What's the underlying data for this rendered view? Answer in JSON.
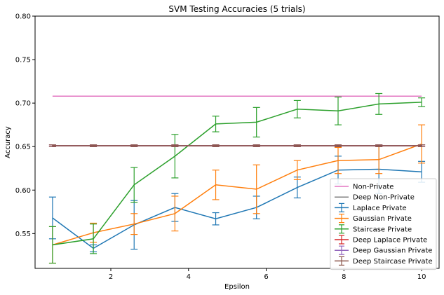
{
  "chart_data": {
    "type": "line",
    "title": "SVM Testing Accuracies (5 trials)",
    "xlabel": "Epsilon",
    "ylabel": "Accuracy",
    "xlim": [
      0.05,
      10.45
    ],
    "ylim": [
      0.51,
      0.8
    ],
    "xticks": [
      2,
      4,
      6,
      8,
      10
    ],
    "yticks": [
      0.55,
      0.6,
      0.65,
      0.7,
      0.75,
      0.8
    ],
    "ytick_labels": [
      "0.55",
      "0.60",
      "0.65",
      "0.70",
      "0.75",
      "0.80"
    ],
    "grid": false,
    "legend_position": "lower-right",
    "x": [
      0.5,
      1.55,
      2.6,
      3.65,
      4.7,
      5.75,
      6.8,
      7.85,
      8.9,
      10.0
    ],
    "series": [
      {
        "name": "Non-Private",
        "color": "#e377c2",
        "errorbars": false,
        "values": [
          0.708,
          0.708,
          0.708,
          0.708,
          0.708,
          0.708,
          0.708,
          0.708,
          0.708,
          0.708
        ]
      },
      {
        "name": "Deep Non-Private",
        "color": "#7f7f7f",
        "errorbars": false,
        "values": [
          0.651,
          0.651,
          0.651,
          0.651,
          0.651,
          0.651,
          0.651,
          0.651,
          0.651,
          0.651
        ]
      },
      {
        "name": "Laplace Private",
        "color": "#1f77b4",
        "errorbars": true,
        "values": [
          0.568,
          0.533,
          0.56,
          0.58,
          0.567,
          0.58,
          0.603,
          0.623,
          0.624,
          0.621
        ],
        "errors": [
          0.024,
          0.004,
          0.028,
          0.016,
          0.007,
          0.013,
          0.012,
          0.016,
          0.028,
          0.012
        ]
      },
      {
        "name": "Gaussian Private",
        "color": "#ff7f0e",
        "errorbars": true,
        "values": [
          0.537,
          0.551,
          0.561,
          0.573,
          0.606,
          0.601,
          0.623,
          0.634,
          0.635,
          0.653
        ],
        "errors": [
          0.021,
          0.011,
          0.012,
          0.02,
          0.017,
          0.028,
          0.011,
          0.015,
          0.016,
          0.022
        ]
      },
      {
        "name": "Staircase Private",
        "color": "#2ca02c",
        "errorbars": true,
        "values": [
          0.537,
          0.544,
          0.606,
          0.639,
          0.676,
          0.678,
          0.693,
          0.691,
          0.699,
          0.701
        ],
        "errors": [
          0.021,
          0.017,
          0.02,
          0.025,
          0.009,
          0.017,
          0.01,
          0.016,
          0.012,
          0.005
        ]
      },
      {
        "name": "Deep Laplace Private",
        "color": "#d62728",
        "errorbars": true,
        "values": [
          0.651,
          0.651,
          0.651,
          0.651,
          0.651,
          0.651,
          0.651,
          0.651,
          0.651,
          0.651
        ],
        "errors": [
          0.001,
          0.001,
          0.001,
          0.001,
          0.001,
          0.001,
          0.001,
          0.001,
          0.001,
          0.001
        ]
      },
      {
        "name": "Deep Gaussian Private",
        "color": "#9467bd",
        "errorbars": true,
        "values": [
          0.651,
          0.651,
          0.651,
          0.651,
          0.651,
          0.651,
          0.651,
          0.651,
          0.651,
          0.651
        ],
        "errors": [
          0.001,
          0.001,
          0.001,
          0.001,
          0.001,
          0.001,
          0.001,
          0.001,
          0.001,
          0.001
        ]
      },
      {
        "name": "Deep Staircase Private",
        "color": "#8c564b",
        "errorbars": true,
        "values": [
          0.651,
          0.651,
          0.651,
          0.651,
          0.651,
          0.651,
          0.651,
          0.651,
          0.651,
          0.651
        ],
        "errors": [
          0.001,
          0.001,
          0.001,
          0.001,
          0.001,
          0.001,
          0.001,
          0.001,
          0.001,
          0.001
        ]
      }
    ]
  }
}
